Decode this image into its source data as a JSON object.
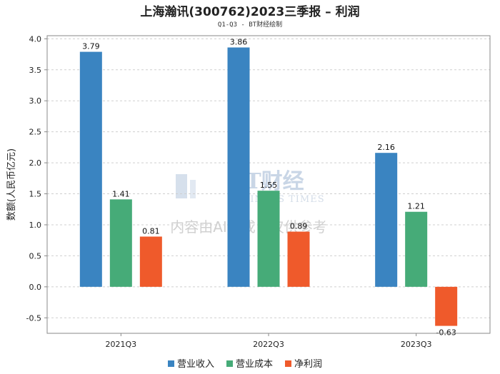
{
  "chart_data": {
    "type": "bar",
    "title": "上海瀚讯(300762)2023三季报 – 利润",
    "subtitle": "Q1-Q3 - BT财经绘制",
    "ylabel": "数额(人民币亿元)",
    "xlabel": "",
    "categories": [
      "2021Q3",
      "2022Q3",
      "2023Q3"
    ],
    "series": [
      {
        "name": "营业收入",
        "color": "#3a84c1",
        "values": [
          3.79,
          3.86,
          2.16
        ]
      },
      {
        "name": "营业成本",
        "color": "#46ab78",
        "values": [
          1.41,
          1.55,
          1.21
        ]
      },
      {
        "name": "净利润",
        "color": "#ef5a2b",
        "values": [
          0.81,
          0.89,
          -0.63
        ]
      }
    ],
    "ylim": [
      -0.75,
      4.05
    ],
    "yticks": [
      -0.5,
      0.0,
      0.5,
      1.0,
      1.5,
      2.0,
      2.5,
      3.0,
      3.5,
      4.0
    ],
    "ytick_labels": [
      "-0.5",
      "0.0",
      "0.5",
      "1.0",
      "1.5",
      "2.0",
      "2.5",
      "3.0",
      "3.5",
      "4.0"
    ],
    "data_labels": [
      [
        "3.79",
        "3.86",
        "2.16"
      ],
      [
        "1.41",
        "1.55",
        "1.21"
      ],
      [
        "0.81",
        "0.89",
        "-0.63"
      ]
    ],
    "grid": true,
    "legend": "bottom-center"
  },
  "watermark": {
    "brand": "BT财经",
    "brand_sub": "BUSINESS TIMES",
    "note": "内容由AI生成，仅供参考"
  }
}
